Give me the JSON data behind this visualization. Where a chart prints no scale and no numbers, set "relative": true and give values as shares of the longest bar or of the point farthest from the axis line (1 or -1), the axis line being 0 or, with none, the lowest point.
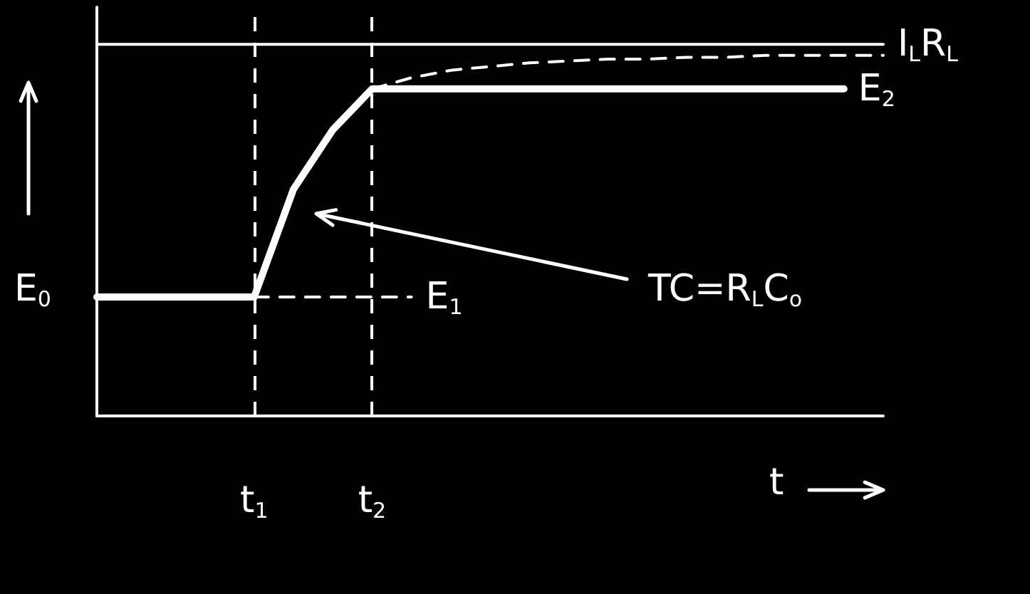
{
  "chart_data": {
    "type": "line",
    "relative": true,
    "ylabel": "E$_{0}$",
    "xlabel": "t",
    "categories": [
      null,
      null,
      null,
      null,
      "t$_{1}$",
      null,
      null,
      "t$_{2}$",
      null,
      null,
      null,
      null,
      null,
      null,
      null,
      null,
      null,
      null,
      null,
      null,
      null
    ],
    "series": [
      {
        "name": "I$_{L}$R$_{L}$",
        "color": "#ffffff",
        "line_style": "solid",
        "values": [
          1,
          1,
          1,
          1,
          1,
          1,
          1,
          1,
          1,
          1,
          1,
          1,
          1,
          1,
          1,
          1,
          1,
          1,
          1,
          1,
          1
        ]
      },
      {
        "name": "E$_{2}$",
        "color": "#ffffff",
        "line_style": "solid",
        "values": [
          0.32,
          0.32,
          0.32,
          0.32,
          0.32,
          0.61,
          0.77,
          0.88,
          0.88,
          0.88,
          0.88,
          0.88,
          0.88,
          0.88,
          0.88,
          0.88,
          0.88,
          0.88,
          0.88,
          0.88,
          null
        ]
      },
      {
        "color": "#ffffff",
        "line_style": "dashed",
        "values": [
          null,
          null,
          null,
          null,
          null,
          null,
          null,
          0.88,
          0.91,
          0.93,
          0.94,
          0.95,
          0.955,
          0.96,
          0.96,
          0.965,
          0.965,
          0.97,
          0.97,
          0.97,
          0.97
        ]
      },
      {
        "name": "E$_{1}$",
        "color": "#ffffff",
        "line_style": "dashed",
        "values": [
          null,
          null,
          null,
          null,
          0.32,
          0.32,
          0.32,
          0.32,
          0.32,
          null,
          null,
          null,
          null,
          null,
          null,
          null,
          null,
          null,
          null,
          null,
          null
        ]
      }
    ],
    "ref_lines": [
      {
        "axis": "x",
        "value": "t$_{1}$",
        "color": "#ffffff",
        "line_style": "dashed"
      },
      {
        "axis": "x",
        "value": "t$_{2}$",
        "color": "#ffffff",
        "line_style": "dashed"
      }
    ],
    "annotations": [
      "TC=R$_{L}$C$_{o}$"
    ],
    "legend": false,
    "grid": false,
    "marker": "none"
  }
}
